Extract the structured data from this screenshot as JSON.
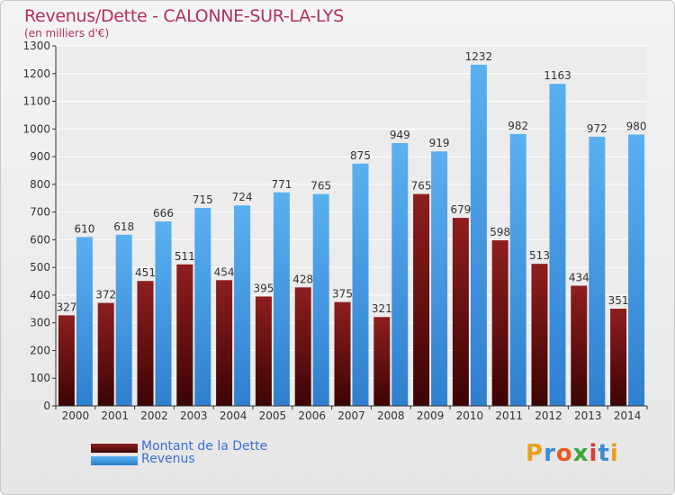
{
  "title": "Revenus/Dette - CALONNE-SUR-LA-LYS",
  "subtitle": "(en milliers d'€)",
  "brand": "Proxiti",
  "legend": [
    {
      "label": "Montant de la Dette",
      "color": "#7a1414"
    },
    {
      "label": "Revenus",
      "color": "#4ea1e6"
    }
  ],
  "chart_data": {
    "type": "bar",
    "categories": [
      "2000",
      "2001",
      "2002",
      "2003",
      "2004",
      "2005",
      "2006",
      "2007",
      "2008",
      "2009",
      "2010",
      "2011",
      "2012",
      "2013",
      "2014"
    ],
    "series": [
      {
        "name": "Montant de la Dette",
        "values": [
          327,
          372,
          451,
          511,
          454,
          395,
          428,
          375,
          321,
          765,
          679,
          598,
          513,
          434,
          351
        ],
        "color": "#7a1414"
      },
      {
        "name": "Revenus",
        "values": [
          610,
          618,
          666,
          715,
          724,
          771,
          765,
          875,
          949,
          919,
          1232,
          982,
          1163,
          972,
          980
        ],
        "color": "#4ea1e6"
      }
    ],
    "ylim": [
      0,
      1300
    ],
    "yticks": [
      0,
      100,
      200,
      300,
      400,
      500,
      600,
      700,
      800,
      900,
      1000,
      1100,
      1200,
      1300
    ],
    "grid": true,
    "legend_position": "bottom-left"
  }
}
